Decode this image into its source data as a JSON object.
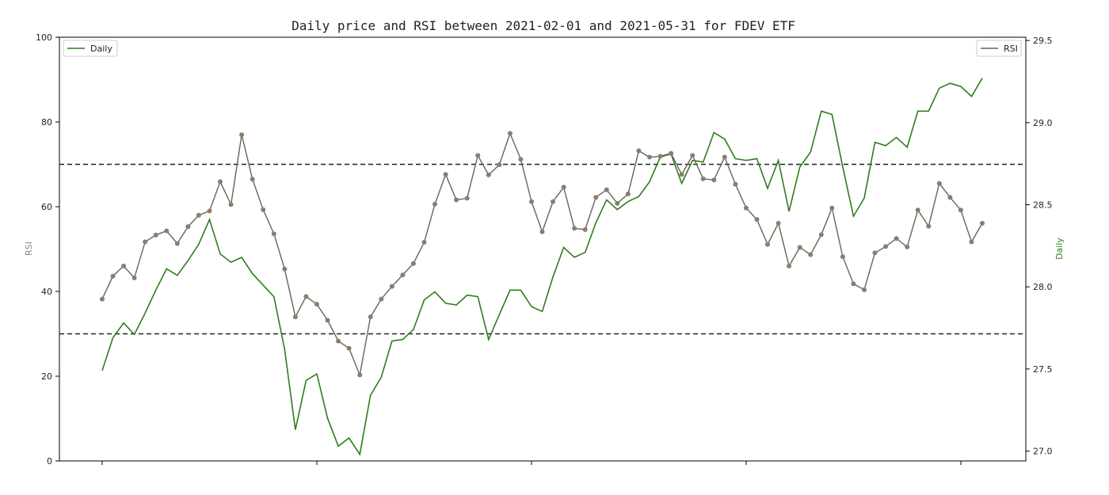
{
  "chart_data": {
    "type": "line",
    "title": "Daily price and RSI between 2021-02-01 and 2021-05-31 for FDEV ETF",
    "left_axis": {
      "label": "RSI",
      "ylim": [
        0,
        100
      ],
      "ticks": [
        0,
        20,
        40,
        60,
        80,
        100
      ]
    },
    "right_axis": {
      "label": "Daily",
      "ylim": [
        26.94,
        29.52
      ],
      "ticks": [
        "27.0",
        "27.5",
        "28.0",
        "28.5",
        "29.0",
        "29.5"
      ]
    },
    "x_tick_count": 5,
    "thresholds": [
      70,
      30
    ],
    "legend_left": "Daily",
    "legend_right": "RSI",
    "colors": {
      "daily": "#2e7d1e",
      "rsi": "#6b6257",
      "rsi_marker": "#8a7d6f",
      "threshold": "#222222",
      "rsi_axis_label": "#8a8a7a",
      "daily_axis_label": "#2e7d1e"
    },
    "series": [
      {
        "name": "Daily",
        "axis": "right",
        "values": [
          27.49,
          27.69,
          27.78,
          27.71,
          27.84,
          27.98,
          28.11,
          28.07,
          28.16,
          28.26,
          28.41,
          28.2,
          28.15,
          28.18,
          28.08,
          28.01,
          27.94,
          27.62,
          27.13,
          27.43,
          27.47,
          27.2,
          27.03,
          27.08,
          26.98,
          27.34,
          27.45,
          27.67,
          27.68,
          27.74,
          27.92,
          27.97,
          27.9,
          27.89,
          27.95,
          27.94,
          27.68,
          27.83,
          27.98,
          27.98,
          27.88,
          27.85,
          28.06,
          28.24,
          28.18,
          28.21,
          28.39,
          28.53,
          28.47,
          28.52,
          28.55,
          28.64,
          28.79,
          28.81,
          28.63,
          28.77,
          28.76,
          28.94,
          28.9,
          28.78,
          28.77,
          28.78,
          28.6,
          28.77,
          28.46,
          28.73,
          28.82,
          29.07,
          29.05,
          28.73,
          28.43,
          28.54,
          28.88,
          28.86,
          28.91,
          28.85,
          29.07,
          29.07,
          29.21,
          29.24,
          29.22,
          29.16,
          29.27
        ]
      },
      {
        "name": "RSI",
        "axis": "left",
        "values": [
          38.2,
          43.6,
          46,
          43.2,
          51.7,
          53.3,
          54.3,
          51.3,
          55.3,
          58,
          59,
          65.9,
          60.5,
          77,
          66.5,
          59.3,
          53.6,
          45.3,
          34,
          38.8,
          37,
          33.2,
          28.3,
          26.6,
          20.3,
          34,
          38.2,
          41.2,
          43.9,
          46.6,
          51.6,
          60.6,
          67.6,
          61.6,
          62,
          72.1,
          67.5,
          69.9,
          77.3,
          71.2,
          61.2,
          54.1,
          61.2,
          64.6,
          54.9,
          54.6,
          62.2,
          64,
          60.8,
          63,
          73.2,
          71.7,
          71.9,
          72.6,
          67.6,
          72.1,
          66.6,
          66.3,
          71.7,
          65.3,
          59.7,
          57,
          51.1,
          56.1,
          46,
          50.4,
          48.7,
          53.4,
          59.7,
          48.2,
          41.8,
          40.4,
          49.1,
          50.6,
          52.5,
          50.5,
          59.2,
          55.4,
          65.5,
          62.2,
          59.2,
          51.7,
          56.1
        ]
      }
    ]
  }
}
